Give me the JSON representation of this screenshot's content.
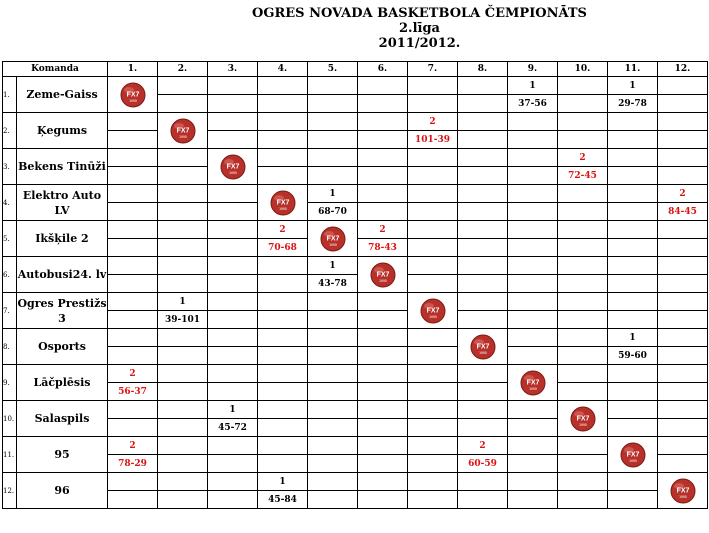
{
  "title": {
    "line1": "OGRES NOVADA  BASKETBOLA ČEMPIONĀTS",
    "line2": "2.līga",
    "line3": "2011/2012."
  },
  "header": {
    "team_label": "Komanda",
    "columns": [
      "1.",
      "2.",
      "3.",
      "4.",
      "5.",
      "6.",
      "7.",
      "8.",
      "9.",
      "10.",
      "11.",
      "12."
    ]
  },
  "logo_text": "FX7",
  "logo_subtext": "1990",
  "colors": {
    "win": "#d11111",
    "loss": "#000000",
    "logo": "#b8302a"
  },
  "rows": [
    {
      "num": "1.",
      "team": "Zeme-Gaiss",
      "cells": [
        {
          "logo": true
        },
        {},
        {},
        {},
        {},
        {},
        {},
        {},
        {
          "pts": "1",
          "score": "37-56",
          "win": false
        },
        {},
        {
          "pts": "1",
          "score": "29-78",
          "win": false
        },
        {}
      ]
    },
    {
      "num": "2.",
      "team": "Ķegums",
      "cells": [
        {},
        {
          "logo": true
        },
        {},
        {},
        {},
        {},
        {
          "pts": "2",
          "score": "101-39",
          "win": true
        },
        {},
        {},
        {},
        {},
        {}
      ]
    },
    {
      "num": "3.",
      "team": "Bekens Tinūži",
      "cells": [
        {},
        {},
        {
          "logo": true
        },
        {},
        {},
        {},
        {},
        {},
        {},
        {
          "pts": "2",
          "score": "72-45",
          "win": true
        },
        {},
        {}
      ]
    },
    {
      "num": "4.",
      "team": "Elektro Auto LV",
      "cells": [
        {},
        {},
        {},
        {
          "logo": true
        },
        {
          "pts": "1",
          "score": "68-70",
          "win": false
        },
        {},
        {},
        {},
        {},
        {},
        {},
        {
          "pts": "2",
          "score": "84-45",
          "win": true
        }
      ]
    },
    {
      "num": "5.",
      "team": "Ikšķile 2",
      "cells": [
        {},
        {},
        {},
        {
          "pts": "2",
          "score": "70-68",
          "win": true
        },
        {
          "logo": true
        },
        {
          "pts": "2",
          "score": "78-43",
          "win": true
        },
        {},
        {},
        {},
        {},
        {},
        {}
      ]
    },
    {
      "num": "6.",
      "team": "Autobusi24. lv",
      "cells": [
        {},
        {},
        {},
        {},
        {
          "pts": "1",
          "score": "43-78",
          "win": false
        },
        {
          "logo": true
        },
        {},
        {},
        {},
        {},
        {},
        {}
      ]
    },
    {
      "num": "7.",
      "team": "Ogres Prestižs 3",
      "cells": [
        {},
        {
          "pts": "1",
          "score": "39-101",
          "win": false
        },
        {},
        {},
        {},
        {},
        {
          "logo": true
        },
        {},
        {},
        {},
        {},
        {}
      ]
    },
    {
      "num": "8.",
      "team": "Osports",
      "cells": [
        {},
        {},
        {},
        {},
        {},
        {},
        {},
        {
          "logo": true
        },
        {},
        {},
        {
          "pts": "1",
          "score": "59-60",
          "win": false
        },
        {}
      ]
    },
    {
      "num": "9.",
      "team": "Lāčplēsis",
      "cells": [
        {
          "pts": "2",
          "score": "56-37",
          "win": true
        },
        {},
        {},
        {},
        {},
        {},
        {},
        {},
        {
          "logo": true
        },
        {},
        {},
        {}
      ]
    },
    {
      "num": "10.",
      "team": "Salaspils",
      "cells": [
        {},
        {},
        {
          "pts": "1",
          "score": "45-72",
          "win": false
        },
        {},
        {},
        {},
        {},
        {},
        {},
        {
          "logo": true
        },
        {},
        {}
      ]
    },
    {
      "num": "11.",
      "team": "95",
      "cells": [
        {
          "pts": "2",
          "score": "78-29",
          "win": true
        },
        {},
        {},
        {},
        {},
        {},
        {},
        {
          "pts": "2",
          "score": "60-59",
          "win": true
        },
        {},
        {},
        {
          "logo": true
        },
        {}
      ]
    },
    {
      "num": "12.",
      "team": "96",
      "cells": [
        {},
        {},
        {},
        {
          "pts": "1",
          "score": "45-84",
          "win": false
        },
        {},
        {},
        {},
        {},
        {},
        {},
        {},
        {
          "logo": true
        }
      ]
    }
  ]
}
